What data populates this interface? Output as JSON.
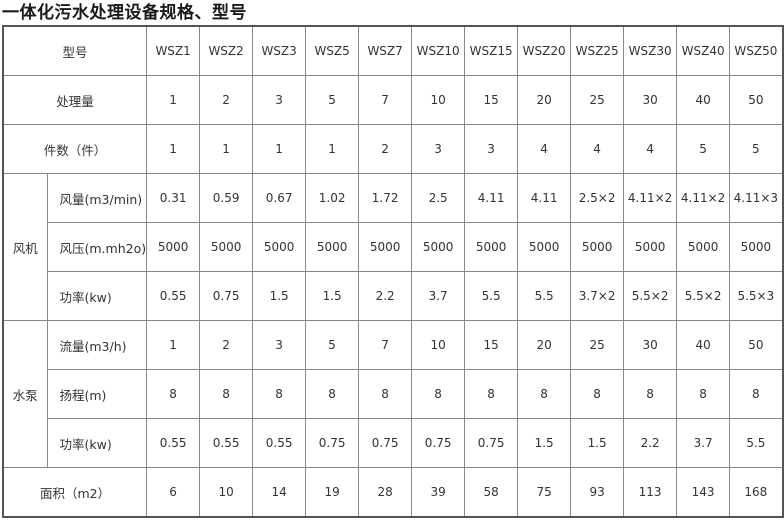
{
  "title": "一体化污水处理设备规格、型号",
  "header": {
    "label": "型号",
    "models": [
      "WSZ1",
      "WSZ2",
      "WSZ3",
      "WSZ5",
      "WSZ7",
      "WSZ10",
      "WSZ15",
      "WSZ20",
      "WSZ25",
      "WSZ30",
      "WSZ40",
      "WSZ50"
    ]
  },
  "rows_top": [
    {
      "label": "处理量",
      "values": [
        "1",
        "2",
        "3",
        "5",
        "7",
        "10",
        "15",
        "20",
        "25",
        "30",
        "40",
        "50"
      ]
    },
    {
      "label": "件数（件）",
      "values": [
        "1",
        "1",
        "1",
        "1",
        "2",
        "3",
        "3",
        "4",
        "4",
        "4",
        "5",
        "5"
      ]
    }
  ],
  "groups": [
    {
      "label": "风机",
      "rows": [
        {
          "label": "风量(m3/min)",
          "values": [
            "0.31",
            "0.59",
            "0.67",
            "1.02",
            "1.72",
            "2.5",
            "4.11",
            "4.11",
            "2.5×2",
            "4.11×2",
            "4.11×2",
            "4.11×3"
          ]
        },
        {
          "label": "风压(m.mh2o)",
          "values": [
            "5000",
            "5000",
            "5000",
            "5000",
            "5000",
            "5000",
            "5000",
            "5000",
            "5000",
            "5000",
            "5000",
            "5000"
          ]
        },
        {
          "label": "功率(kw)",
          "values": [
            "0.55",
            "0.75",
            "1.5",
            "1.5",
            "2.2",
            "3.7",
            "5.5",
            "5.5",
            "3.7×2",
            "5.5×2",
            "5.5×2",
            "5.5×3"
          ]
        }
      ]
    },
    {
      "label": "水泵",
      "rows": [
        {
          "label": "流量(m3/h)",
          "values": [
            "1",
            "2",
            "3",
            "5",
            "7",
            "10",
            "15",
            "20",
            "25",
            "30",
            "40",
            "50"
          ]
        },
        {
          "label": "扬程(m)",
          "values": [
            "8",
            "8",
            "8",
            "8",
            "8",
            "8",
            "8",
            "8",
            "8",
            "8",
            "8",
            "8"
          ]
        },
        {
          "label": "功率(kw)",
          "values": [
            "0.55",
            "0.55",
            "0.55",
            "0.75",
            "0.75",
            "0.75",
            "0.75",
            "1.5",
            "1.5",
            "2.2",
            "3.7",
            "5.5"
          ]
        }
      ]
    }
  ],
  "rows_bottom": [
    {
      "label": "面积（m2）",
      "values": [
        "6",
        "10",
        "14",
        "19",
        "28",
        "39",
        "58",
        "75",
        "93",
        "113",
        "143",
        "168"
      ]
    }
  ]
}
